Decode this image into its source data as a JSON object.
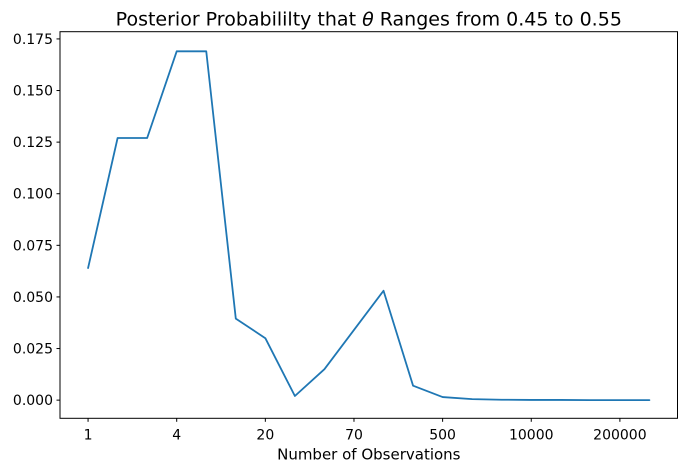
{
  "title": {
    "prefix": "Posterior Probabililty that ",
    "theta": "θ",
    "suffix": " Ranges from 0.45 to 0.55"
  },
  "chart_data": {
    "type": "line",
    "title": "Posterior Probabililty that θ Ranges from 0.45 to 0.55",
    "xlabel": "Number of Observations",
    "ylabel": "",
    "x_index": [
      0,
      1,
      2,
      3,
      4,
      5,
      6,
      7,
      8,
      9,
      10,
      11,
      12,
      13,
      14,
      15,
      16,
      17,
      18,
      19
    ],
    "values": [
      0.064,
      0.127,
      0.127,
      0.169,
      0.169,
      0.0395,
      0.03,
      0.002,
      0.015,
      0.034,
      0.053,
      0.007,
      0.0015,
      0.0005,
      0.0002,
      0.0001,
      0.0001,
      0.0,
      0.0,
      0.0
    ],
    "x_ticks": [
      {
        "index": 0,
        "label": "1"
      },
      {
        "index": 3,
        "label": "4"
      },
      {
        "index": 6,
        "label": "20"
      },
      {
        "index": 9,
        "label": "70"
      },
      {
        "index": 12,
        "label": "500"
      },
      {
        "index": 15,
        "label": "10000"
      },
      {
        "index": 18,
        "label": "200000"
      }
    ],
    "y_ticks": [
      0.0,
      0.025,
      0.05,
      0.075,
      0.1,
      0.125,
      0.15,
      0.175
    ],
    "y_tick_decimals": 3,
    "xlim": [
      -0.95,
      19.95
    ],
    "ylim": [
      -0.0088,
      0.1785
    ],
    "line_color": "#1f77b4",
    "axis_color": "#000000",
    "background_color": "#ffffff",
    "grid": false,
    "legend": "none"
  }
}
